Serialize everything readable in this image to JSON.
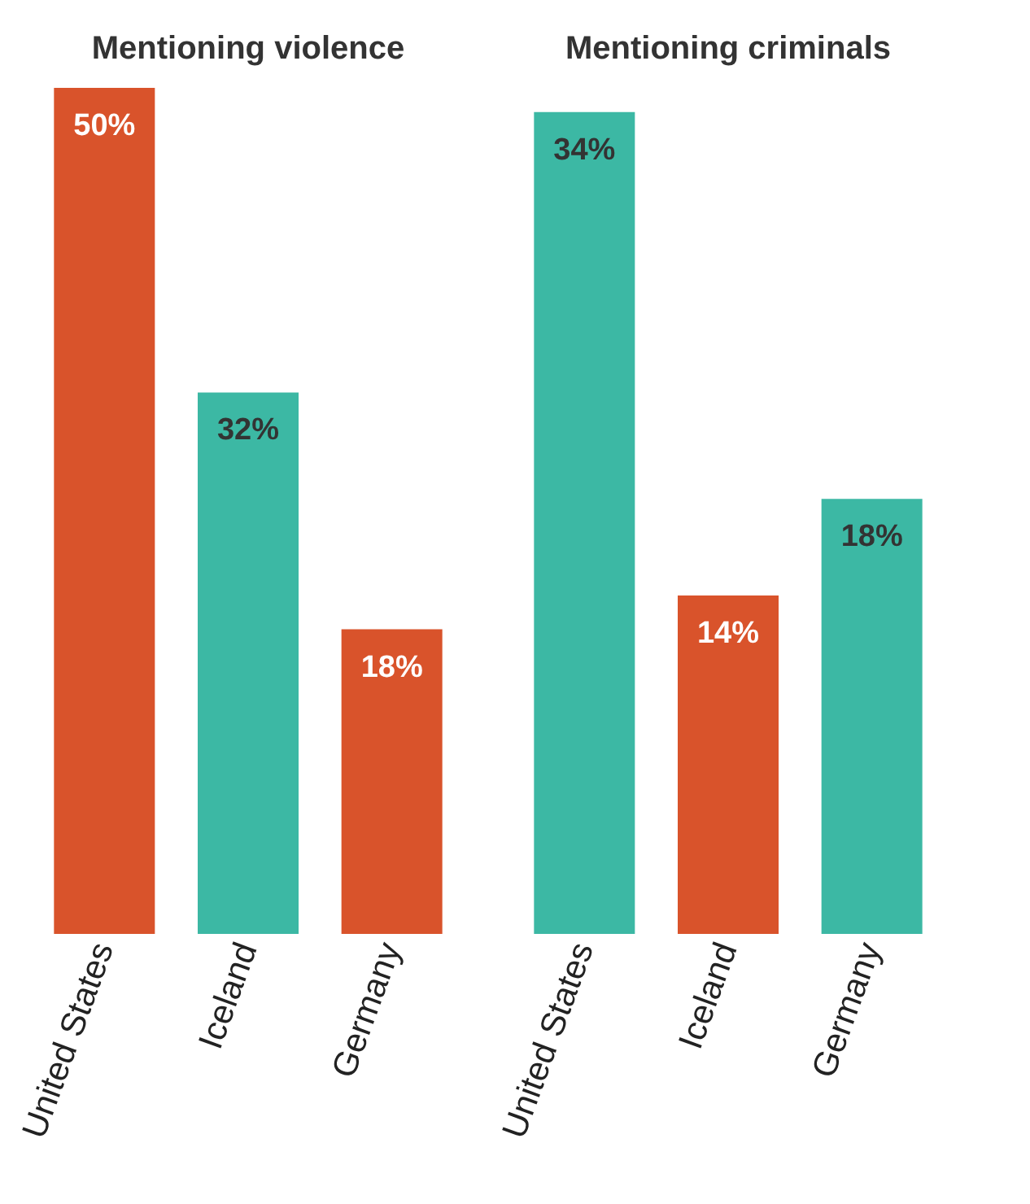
{
  "chart_data": [
    {
      "type": "bar",
      "title": "Mentioning violence",
      "categories": [
        "United States",
        "Iceland",
        "Germany"
      ],
      "values": [
        50,
        32,
        18
      ],
      "colors": [
        "#d9532b",
        "#3cb8a4",
        "#d9532b"
      ],
      "value_labels": [
        "50%",
        "32%",
        "18%"
      ],
      "tick_labels": "x"
    },
    {
      "type": "bar",
      "title": "Mentioning criminals",
      "categories": [
        "United States",
        "Iceland",
        "Germany"
      ],
      "values": [
        34,
        14,
        18
      ],
      "colors": [
        "#3cb8a4",
        "#d9532b",
        "#3cb8a4"
      ],
      "value_labels": [
        "34%",
        "14%",
        "18%"
      ],
      "tick_labels": "x"
    }
  ]
}
